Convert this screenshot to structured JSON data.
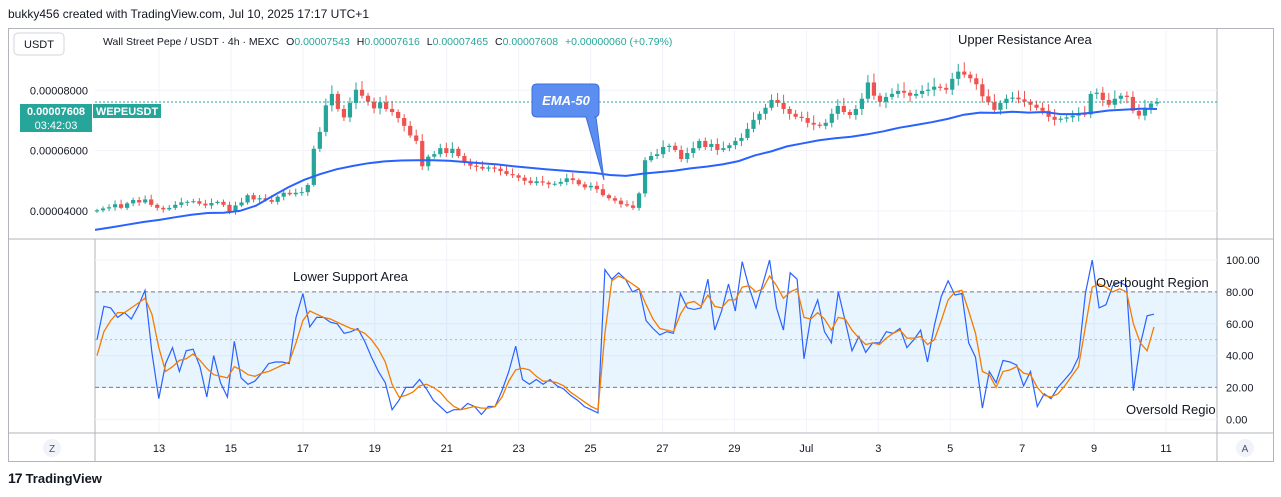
{
  "header": {
    "caption": "bukky456 created with TradingView.com, Jul 10, 2025 17:17 UTC+1"
  },
  "symbol": {
    "currency_button": "USDT",
    "legend": "Wall Street Pepe / USDT · 4h · MEXC",
    "o_label": "O",
    "o_value": "0.00007543",
    "h_label": "H",
    "h_value": "0.00007616",
    "l_label": "L",
    "l_value": "0.00007465",
    "c_label": "C",
    "c_value": "0.00007608",
    "change": "+0.00000060 (+0.79%)",
    "price_tag": "0.00007608",
    "ticker_tag": "WEPEUSDT",
    "countdown": "03:42:03"
  },
  "annotations": {
    "upper_resistance": "Upper Resistance Area",
    "ema_callout": "EMA-50",
    "lower_support": "Lower Support Area",
    "overbought": "Overbought Region",
    "oversold": "Oversold Regio"
  },
  "axis": {
    "price_ticks": [
      "0.00008000",
      "0.00006000",
      "0.00004000"
    ],
    "osc_ticks": [
      "100.00",
      "80.00",
      "60.00",
      "40.00",
      "20.00",
      "0.00"
    ],
    "time_ticks": [
      "13",
      "15",
      "17",
      "19",
      "21",
      "23",
      "25",
      "27",
      "29",
      "Jul",
      "3",
      "5",
      "7",
      "9",
      "11"
    ],
    "corner_left": "Z",
    "corner_right": "A"
  },
  "footer": {
    "brand": "TradingView",
    "logo": "17"
  },
  "colors": {
    "up": "#26a69a",
    "down": "#ef5350",
    "ema": "#2962ff",
    "stoch_k": "#2962ff",
    "stoch_d": "#f57c00",
    "band": "#2196f3"
  },
  "chart_data": [
    {
      "type": "candlestick",
      "title": "Wall Street Pepe / USDT · 4h · MEXC",
      "ylim": [
        3.1e-05,
        0.0001
      ],
      "x_ticks": [
        "13",
        "15",
        "17",
        "19",
        "21",
        "23",
        "25",
        "27",
        "29",
        "Jul",
        "3",
        "5",
        "7",
        "9",
        "11"
      ],
      "y_ticks": [
        8e-05,
        6e-05,
        4e-05
      ],
      "close": [
        4.02e-05,
        4.08e-05,
        4.12e-05,
        4.22e-05,
        4.1e-05,
        4.25e-05,
        4.36e-05,
        4.28e-05,
        4.38e-05,
        4.2e-05,
        4.1e-05,
        4.05e-05,
        4.1e-05,
        4.2e-05,
        4.28e-05,
        4.3e-05,
        4.32e-05,
        4.24e-05,
        4.18e-05,
        4.26e-05,
        4.3e-05,
        4.2e-05,
        3.98e-05,
        4.18e-05,
        4.28e-05,
        4.52e-05,
        4.38e-05,
        4.42e-05,
        4.36e-05,
        4.3e-05,
        4.47e-05,
        4.6e-05,
        4.55e-05,
        4.6e-05,
        4.62e-05,
        4.86e-05,
        6.06e-05,
        6.62e-05,
        7.5e-05,
        7.88e-05,
        7.38e-05,
        7.1e-05,
        7.58e-05,
        8.02e-05,
        7.82e-05,
        7.62e-05,
        7.4e-05,
        7.6e-05,
        7.38e-05,
        7.28e-05,
        7.08e-05,
        6.82e-05,
        6.5e-05,
        6.32e-05,
        5.48e-05,
        5.8e-05,
        5.88e-05,
        6.08e-05,
        5.92e-05,
        6.06e-05,
        5.82e-05,
        5.6e-05,
        5.5e-05,
        5.46e-05,
        5.4e-05,
        5.44e-05,
        5.4e-05,
        5.32e-05,
        5.22e-05,
        5.18e-05,
        5.1e-05,
        5e-05,
        4.92e-05,
        4.98e-05,
        4.94e-05,
        4.88e-05,
        4.9e-05,
        4.96e-05,
        5.08e-05,
        5.02e-05,
        4.88e-05,
        4.78e-05,
        4.83e-05,
        4.72e-05,
        4.52e-05,
        4.42e-05,
        4.34e-05,
        4.22e-05,
        4.18e-05,
        4.1e-05,
        4.58e-05,
        5.68e-05,
        5.82e-05,
        5.88e-05,
        6.12e-05,
        6.16e-05,
        6.02e-05,
        5.72e-05,
        5.92e-05,
        6.08e-05,
        6.32e-05,
        6.12e-05,
        6.22e-05,
        6.02e-05,
        6.08e-05,
        6.18e-05,
        6.32e-05,
        6.42e-05,
        6.72e-05,
        7.02e-05,
        7.22e-05,
        7.42e-05,
        7.68e-05,
        7.58e-05,
        7.38e-05,
        7.22e-05,
        7.12e-05,
        7.08e-05,
        6.92e-05,
        6.86e-05,
        6.82e-05,
        6.92e-05,
        7.22e-05,
        7.48e-05,
        7.28e-05,
        7.18e-05,
        7.38e-05,
        7.72e-05,
        8.26e-05,
        7.82e-05,
        7.62e-05,
        7.78e-05,
        7.88e-05,
        7.98e-05,
        7.92e-05,
        7.82e-05,
        7.88e-05,
        7.98e-05,
        8.02e-05,
        8.12e-05,
        8.08e-05,
        8.02e-05,
        8.38e-05,
        8.62e-05,
        8.52e-05,
        8.4e-05,
        8.2e-05,
        7.8e-05,
        7.6e-05,
        7.35e-05,
        7.58e-05,
        7.72e-05,
        7.76e-05,
        7.7e-05,
        7.62e-05,
        7.52e-05,
        7.42e-05,
        7.32e-05,
        7.12e-05,
        7.02e-05,
        7.06e-05,
        7.1e-05,
        7.16e-05,
        7.22e-05,
        7.2e-05,
        7.88e-05,
        7.92e-05,
        7.68e-05,
        7.52e-05,
        7.72e-05,
        7.82e-05,
        7.78e-05,
        7.32e-05,
        7.16e-05,
        7.42e-05,
        7.56e-05,
        7.61e-05
      ],
      "series": [
        {
          "name": "EMA-50",
          "values": [
            3.37e-05,
            3.45e-05,
            3.54e-05,
            3.63e-05,
            3.7e-05,
            3.79e-05,
            3.87e-05,
            3.93e-05,
            3.94e-05,
            4e-05,
            4.17e-05,
            4.48e-05,
            4.78e-05,
            5.03e-05,
            5.22e-05,
            5.38e-05,
            5.49e-05,
            5.58e-05,
            5.64e-05,
            5.67e-05,
            5.68e-05,
            5.68e-05,
            5.66e-05,
            5.62e-05,
            5.58e-05,
            5.54e-05,
            5.48e-05,
            5.43e-05,
            5.38e-05,
            5.34e-05,
            5.3e-05,
            5.26e-05,
            5.19e-05,
            5.16e-05,
            5.23e-05,
            5.28e-05,
            5.33e-05,
            5.41e-05,
            5.47e-05,
            5.54e-05,
            5.65e-05,
            5.84e-05,
            5.97e-05,
            6.14e-05,
            6.24e-05,
            6.34e-05,
            6.41e-05,
            6.46e-05,
            6.54e-05,
            6.64e-05,
            6.76e-05,
            6.85e-05,
            6.94e-05,
            7.05e-05,
            7.19e-05,
            7.26e-05,
            7.25e-05,
            7.29e-05,
            7.26e-05,
            7.28e-05,
            7.21e-05,
            7.21e-05,
            7.26e-05,
            7.33e-05,
            7.36e-05,
            7.39e-05,
            7.38e-05
          ]
        }
      ]
    },
    {
      "type": "line",
      "title": "",
      "ylim": [
        -8,
        112
      ],
      "y_ticks": [
        100,
        80,
        60,
        40,
        20,
        0
      ],
      "band": [
        20,
        80
      ],
      "midline": 50,
      "series": [
        {
          "values": [
            50,
            71,
            70,
            64,
            67,
            63,
            71,
            81,
            42,
            13,
            35,
            45,
            30,
            43,
            44,
            33,
            14,
            40,
            23,
            14,
            49,
            26,
            22,
            24,
            29,
            35,
            36,
            36,
            35,
            64,
            79,
            58,
            64,
            64,
            61,
            60,
            54,
            55,
            57,
            49,
            39,
            30,
            23,
            6,
            12,
            20,
            20,
            25,
            19,
            12,
            8,
            4,
            6,
            6,
            10,
            8,
            3,
            8,
            8,
            18,
            30,
            46,
            25,
            22,
            25,
            22,
            25,
            21,
            19,
            15,
            12,
            8,
            6,
            4,
            94,
            88,
            92,
            88,
            80,
            82,
            62,
            57,
            53,
            55,
            54,
            79,
            70,
            69,
            70,
            88,
            56,
            68,
            85,
            68,
            99,
            83,
            70,
            85,
            100,
            70,
            56,
            92,
            88,
            38,
            64,
            75,
            55,
            48,
            80,
            62,
            43,
            52,
            42,
            48,
            48,
            55,
            54,
            57,
            45,
            50,
            56,
            36,
            59,
            77,
            87,
            78,
            79,
            48,
            39,
            7,
            30,
            23,
            37,
            36,
            34,
            21,
            30,
            8,
            16,
            13,
            20,
            25,
            30,
            39,
            79,
            100,
            70,
            72,
            84,
            86,
            84,
            18,
            47,
            65,
            66
          ]
        },
        {
          "values": [
            40,
            55,
            62,
            67,
            67,
            70,
            73,
            76,
            66,
            45,
            30,
            33,
            37,
            38,
            41,
            37,
            32,
            28,
            27,
            26,
            33,
            31,
            28,
            27,
            29,
            30,
            32,
            34,
            36,
            48,
            62,
            68,
            66,
            64,
            63,
            61,
            59,
            57,
            56,
            54,
            50,
            44,
            36,
            22,
            14,
            15,
            17,
            21,
            22,
            20,
            17,
            12,
            8,
            6,
            7,
            8,
            7,
            7,
            8,
            14,
            24,
            31,
            32,
            31,
            27,
            24,
            24,
            23,
            21,
            17,
            14,
            11,
            8,
            6,
            54,
            87,
            90,
            88,
            85,
            82,
            72,
            63,
            57,
            56,
            55,
            66,
            73,
            74,
            71,
            78,
            71,
            70,
            75,
            75,
            83,
            84,
            80,
            82,
            90,
            84,
            76,
            80,
            82,
            64,
            63,
            67,
            63,
            56,
            64,
            63,
            56,
            51,
            47,
            48,
            47,
            51,
            54,
            56,
            51,
            51,
            52,
            47,
            50,
            62,
            75,
            80,
            81,
            68,
            54,
            30,
            28,
            20,
            30,
            31,
            33,
            29,
            28,
            20,
            15,
            14,
            16,
            21,
            27,
            33,
            58,
            83,
            85,
            83,
            80,
            82,
            80,
            60,
            48,
            43,
            58
          ]
        }
      ]
    }
  ]
}
